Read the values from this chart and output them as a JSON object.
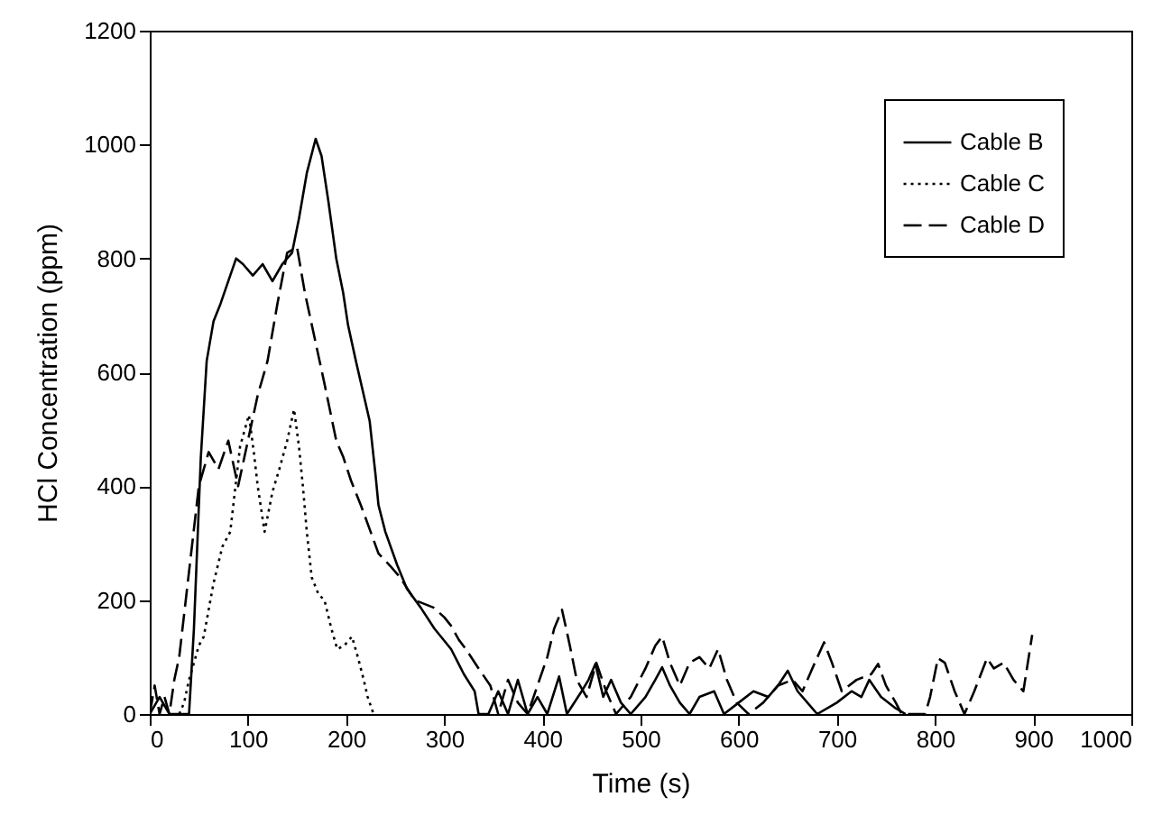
{
  "chart_data": {
    "type": "line",
    "xlabel": "Time (s)",
    "ylabel": "HCl Concentration (ppm)",
    "xlim": [
      0,
      1000
    ],
    "xticks": [
      0,
      100,
      200,
      300,
      400,
      500,
      600,
      700,
      800,
      900,
      1000
    ],
    "ylim": [
      0,
      1200
    ],
    "yticks": [
      0,
      200,
      400,
      600,
      800,
      1000,
      1200
    ],
    "grid": false,
    "legend": "top right",
    "marker": "none",
    "series": [
      {
        "name": "Cable B",
        "color": "#000000",
        "line_style": "solid",
        "x": [
          0,
          10,
          20,
          30,
          40,
          45,
          52,
          58,
          65,
          72,
          80,
          88,
          95,
          105,
          115,
          125,
          135,
          145,
          152,
          160,
          169,
          175,
          182,
          190,
          197,
          202,
          210,
          218,
          224,
          230,
          233,
          240,
          252,
          262,
          276,
          290,
          307,
          320,
          331,
          335,
          345,
          355,
          365,
          375,
          385,
          395,
          405,
          417,
          425,
          440,
          447,
          454,
          462,
          470,
          480,
          490,
          505,
          515,
          522,
          530,
          540,
          550,
          560,
          575,
          585,
          600,
          615,
          630,
          640,
          650,
          660,
          670,
          680,
          700,
          715,
          725,
          733,
          745,
          760,
          770
        ],
        "values": [
          0,
          30,
          0,
          0,
          0,
          150,
          450,
          620,
          690,
          720,
          760,
          800,
          790,
          770,
          790,
          760,
          790,
          810,
          870,
          950,
          1010,
          980,
          900,
          800,
          740,
          683,
          620,
          560,
          515,
          420,
          367,
          320,
          262,
          220,
          187,
          150,
          114,
          70,
          40,
          0,
          0,
          40,
          0,
          60,
          0,
          30,
          0,
          66,
          0,
          40,
          60,
          88,
          30,
          60,
          20,
          0,
          30,
          60,
          82,
          50,
          20,
          0,
          30,
          40,
          0,
          20,
          40,
          30,
          50,
          76,
          40,
          20,
          0,
          20,
          40,
          30,
          60,
          30,
          10,
          0
        ]
      },
      {
        "name": "Cable C",
        "color": "#000000",
        "line_style": "dotted",
        "x": [
          30,
          35,
          40,
          50,
          55,
          65,
          74,
          82,
          92,
          101,
          106,
          110,
          117,
          125,
          132,
          140,
          147,
          152,
          156,
          160,
          165,
          172,
          178,
          185,
          191,
          198,
          206,
          212,
          218,
          222,
          228
        ],
        "values": [
          0,
          20,
          60,
          120,
          136,
          230,
          294,
          320,
          470,
          525,
          460,
          400,
          320,
          390,
          430,
          480,
          535,
          470,
          400,
          320,
          240,
          210,
          200,
          150,
          114,
          120,
          136,
          100,
          60,
          30,
          0
        ]
      },
      {
        "name": "Cable D",
        "color": "#000000",
        "line_style": "dashed",
        "x": [
          0,
          5,
          10,
          15,
          20,
          25,
          30,
          40,
          50,
          60,
          70,
          80,
          90,
          100,
          110,
          120,
          130,
          140,
          150,
          158,
          168,
          178,
          190,
          197,
          205,
          215,
          225,
          233,
          245,
          255,
          270,
          289,
          300,
          307,
          315,
          322,
          335,
          347,
          355,
          365,
          375,
          385,
          395,
          405,
          412,
          420,
          428,
          435,
          445,
          455,
          465,
          475,
          490,
          505,
          515,
          522,
          530,
          540,
          550,
          560,
          570,
          579,
          588,
          598,
          610,
          625,
          640,
          655,
          665,
          675,
          687,
          695,
          705,
          720,
          735,
          742,
          750,
          760,
          766,
          790,
          795,
          803,
          810,
          820,
          830,
          840,
          853,
          860,
          870,
          880,
          890,
          899
        ],
        "values": [
          0,
          50,
          0,
          30,
          0,
          60,
          100,
          250,
          400,
          460,
          430,
          480,
          400,
          480,
          560,
          620,
          720,
          810,
          820,
          740,
          660,
          580,
          480,
          452,
          410,
          367,
          320,
          282,
          260,
          240,
          200,
          187,
          170,
          155,
          130,
          114,
          80,
          50,
          0,
          60,
          20,
          0,
          50,
          100,
          150,
          183,
          120,
          60,
          30,
          90,
          40,
          0,
          30,
          80,
          120,
          136,
          90,
          50,
          90,
          100,
          80,
          114,
          60,
          20,
          0,
          20,
          50,
          60,
          40,
          80,
          126,
          90,
          40,
          60,
          70,
          88,
          50,
          20,
          0,
          0,
          30,
          98,
          90,
          40,
          0,
          40,
          98,
          80,
          90,
          60,
          40,
          139
        ]
      }
    ]
  }
}
